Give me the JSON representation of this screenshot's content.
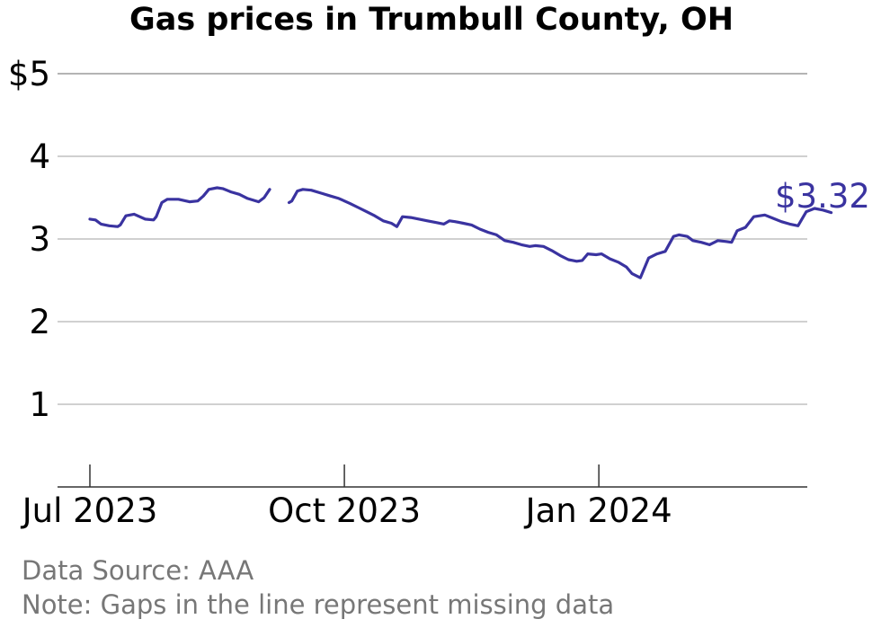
{
  "title": "Gas prices in Trumbull County, OH",
  "source_note": "Data Source: AAA",
  "gap_note": "Note: Gaps in the line represent missing data",
  "colors": {
    "line": "#3a33a0",
    "grid": "#b5b5b5",
    "axis": "#333333",
    "note": "#777777"
  },
  "chart_data": {
    "type": "line",
    "title": "Gas prices in Trumbull County, OH",
    "xlabel": "",
    "ylabel": "",
    "ylim": [
      0,
      5
    ],
    "xlim": [
      "2023-06-26",
      "2024-03-28"
    ],
    "y_ticks": [
      {
        "value": 1,
        "label": "1"
      },
      {
        "value": 2,
        "label": "2"
      },
      {
        "value": 3,
        "label": "3"
      },
      {
        "value": 4,
        "label": "4"
      },
      {
        "value": 5,
        "label": "$5"
      }
    ],
    "x_ticks": [
      {
        "date": "2023-07-01",
        "label": "Jul 2023"
      },
      {
        "date": "2023-10-01",
        "label": "Oct 2023"
      },
      {
        "date": "2024-01-01",
        "label": "Jan 2024"
      }
    ],
    "grid": true,
    "last_value_label": "$3.32",
    "series": [
      {
        "segments": [
          [
            [
              "2023-07-01",
              3.24
            ],
            [
              "2023-07-03",
              3.23
            ],
            [
              "2023-07-05",
              3.18
            ],
            [
              "2023-07-08",
              3.16
            ],
            [
              "2023-07-11",
              3.15
            ],
            [
              "2023-07-12",
              3.17
            ],
            [
              "2023-07-14",
              3.28
            ],
            [
              "2023-07-17",
              3.3
            ],
            [
              "2023-07-19",
              3.27
            ],
            [
              "2023-07-21",
              3.24
            ],
            [
              "2023-07-24",
              3.23
            ],
            [
              "2023-07-25",
              3.27
            ],
            [
              "2023-07-27",
              3.44
            ],
            [
              "2023-07-29",
              3.48
            ],
            [
              "2023-08-02",
              3.48
            ],
            [
              "2023-08-06",
              3.45
            ],
            [
              "2023-08-09",
              3.46
            ],
            [
              "2023-08-11",
              3.52
            ],
            [
              "2023-08-13",
              3.6
            ],
            [
              "2023-08-16",
              3.62
            ],
            [
              "2023-08-18",
              3.61
            ],
            [
              "2023-08-21",
              3.57
            ],
            [
              "2023-08-24",
              3.54
            ],
            [
              "2023-08-27",
              3.49
            ],
            [
              "2023-08-31",
              3.45
            ],
            [
              "2023-09-02",
              3.5
            ],
            [
              "2023-09-04",
              3.6
            ]
          ],
          [
            [
              "2023-09-11",
              3.44
            ],
            [
              "2023-09-12",
              3.46
            ],
            [
              "2023-09-14",
              3.58
            ],
            [
              "2023-09-16",
              3.6
            ],
            [
              "2023-09-19",
              3.59
            ],
            [
              "2023-09-23",
              3.55
            ],
            [
              "2023-09-26",
              3.52
            ],
            [
              "2023-09-29",
              3.49
            ],
            [
              "2023-10-03",
              3.43
            ],
            [
              "2023-10-06",
              3.38
            ],
            [
              "2023-10-09",
              3.33
            ],
            [
              "2023-10-12",
              3.28
            ],
            [
              "2023-10-15",
              3.22
            ],
            [
              "2023-10-18",
              3.19
            ],
            [
              "2023-10-20",
              3.15
            ],
            [
              "2023-10-22",
              3.27
            ],
            [
              "2023-10-25",
              3.26
            ],
            [
              "2023-10-28",
              3.24
            ],
            [
              "2023-10-31",
              3.22
            ],
            [
              "2023-11-03",
              3.2
            ],
            [
              "2023-11-06",
              3.18
            ],
            [
              "2023-11-08",
              3.22
            ],
            [
              "2023-11-10",
              3.21
            ],
            [
              "2023-11-13",
              3.19
            ],
            [
              "2023-11-16",
              3.17
            ],
            [
              "2023-11-19",
              3.12
            ],
            [
              "2023-11-22",
              3.08
            ],
            [
              "2023-11-25",
              3.05
            ],
            [
              "2023-11-28",
              2.98
            ],
            [
              "2023-12-01",
              2.96
            ],
            [
              "2023-12-04",
              2.93
            ],
            [
              "2023-12-07",
              2.91
            ],
            [
              "2023-12-09",
              2.92
            ],
            [
              "2023-12-12",
              2.91
            ],
            [
              "2023-12-15",
              2.86
            ],
            [
              "2023-12-18",
              2.8
            ],
            [
              "2023-12-21",
              2.75
            ],
            [
              "2023-12-24",
              2.73
            ],
            [
              "2023-12-26",
              2.74
            ],
            [
              "2023-12-28",
              2.82
            ],
            [
              "2023-12-31",
              2.81
            ],
            [
              "2024-01-02",
              2.82
            ],
            [
              "2024-01-05",
              2.76
            ],
            [
              "2024-01-08",
              2.72
            ],
            [
              "2024-01-11",
              2.66
            ],
            [
              "2024-01-13",
              2.58
            ],
            [
              "2024-01-16",
              2.53
            ],
            [
              "2024-01-19",
              2.77
            ],
            [
              "2024-01-22",
              2.82
            ],
            [
              "2024-01-25",
              2.85
            ],
            [
              "2024-01-28",
              3.03
            ],
            [
              "2024-01-30",
              3.05
            ],
            [
              "2024-02-02",
              3.03
            ],
            [
              "2024-02-04",
              2.98
            ],
            [
              "2024-02-07",
              2.96
            ],
            [
              "2024-02-10",
              2.93
            ],
            [
              "2024-02-13",
              2.98
            ],
            [
              "2024-02-16",
              2.97
            ],
            [
              "2024-02-18",
              2.96
            ],
            [
              "2024-02-20",
              3.1
            ],
            [
              "2024-02-23",
              3.14
            ],
            [
              "2024-02-26",
              3.27
            ],
            [
              "2024-03-01",
              3.29
            ],
            [
              "2024-03-04",
              3.25
            ],
            [
              "2024-03-07",
              3.21
            ],
            [
              "2024-03-10",
              3.18
            ],
            [
              "2024-03-13",
              3.16
            ],
            [
              "2024-03-16",
              3.33
            ],
            [
              "2024-03-19",
              3.37
            ],
            [
              "2024-03-22",
              3.35
            ],
            [
              "2024-03-25",
              3.32
            ]
          ]
        ]
      }
    ]
  }
}
